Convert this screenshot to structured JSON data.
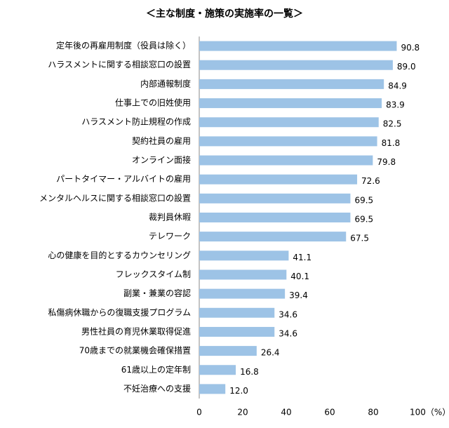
{
  "chart_data": {
    "type": "bar",
    "orientation": "horizontal",
    "title": "＜主な制度・施策の実施率の一覧＞",
    "categories": [
      "定年後の再雇用制度（役員は除く）",
      "ハラスメントに関する相談窓口の設置",
      "内部通報制度",
      "仕事上での旧姓使用",
      "ハラスメント防止規程の作成",
      "契約社員の雇用",
      "オンライン面接",
      "パートタイマー・アルバイトの雇用",
      "メンタルヘルスに関する相談窓口の設置",
      "裁判員休暇",
      "テレワーク",
      "心の健康を目的とするカウンセリング",
      "フレックスタイム制",
      "副業・兼業の容認",
      "私傷病休職からの復職支援プログラム",
      "男性社員の育児休業取得促進",
      "70歳までの就業機会確保措置",
      "61歳以上の定年制",
      "不妊治療への支援"
    ],
    "values": [
      90.8,
      89.0,
      84.9,
      83.9,
      82.5,
      81.8,
      79.8,
      72.6,
      69.5,
      69.5,
      67.5,
      41.1,
      40.1,
      39.4,
      34.6,
      34.6,
      26.4,
      16.8,
      12.0
    ],
    "value_labels": [
      "90.8",
      "89.0",
      "84.9",
      "83.9",
      "82.5",
      "81.8",
      "79.8",
      "72.6",
      "69.5",
      "69.5",
      "67.5",
      "41.1",
      "40.1",
      "39.4",
      "34.6",
      "34.6",
      "26.4",
      "16.8",
      "12.0"
    ],
    "color": "#9dc3e6",
    "xlim": [
      0,
      100
    ],
    "xticks": [
      0,
      20,
      40,
      60,
      80,
      {
        "value": 100,
        "label": "100（%）"
      }
    ]
  }
}
